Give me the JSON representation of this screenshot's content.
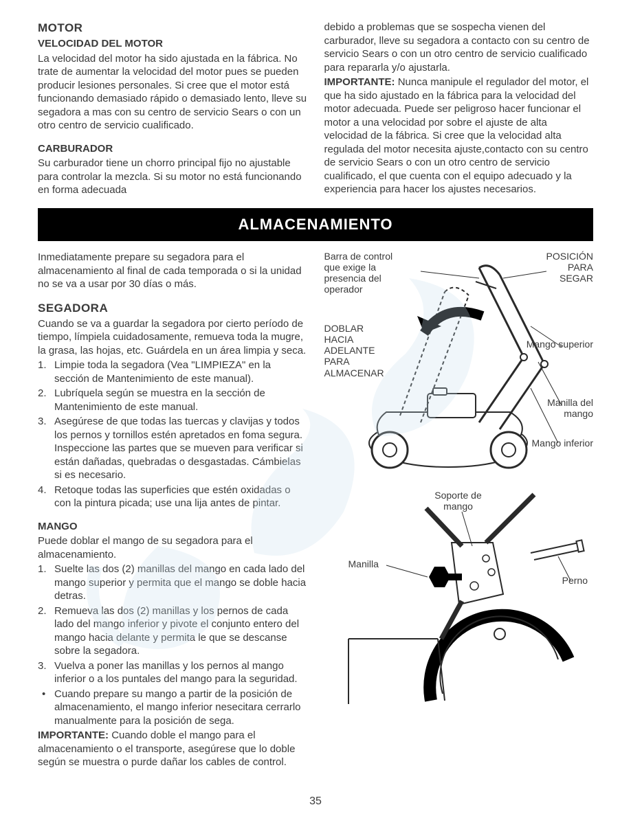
{
  "top": {
    "left": {
      "h_motor": "MOTOR",
      "h_velocidad": "VELOCIDAD DEL MOTOR",
      "p_velocidad": "La velocidad del motor ha sido ajustada en la fábrica. No trate de aumentar la velocidad del motor pues se pueden producir lesiones personales. Si cree que el motor está funcionando demasiado rápido o demasiado lento, lleve su segadora a mas con su centro de servicio Sears o con un otro centro de servicio cualificado.",
      "h_carb": "CARBURADOR",
      "p_carb": "Su carburador tiene un chorro principal fijo no ajustable para controlar la mezcla. Si su motor no está funcionando en forma adecuada"
    },
    "right": {
      "p_cont": "debido a problemas que se sospecha vienen del carburador, lleve su segadora a contacto con su centro de servicio Sears o con un otro centro de servicio cualificado para repararla y/o ajustarla.",
      "p_imp_label": "IMPORTANTE:",
      "p_imp": " Nunca manipule el regulador del motor, el que ha sido ajustado en la fábrica para la velocidad del motor adecuada. Puede ser peligroso hacer funcionar el motor a una velocidad por sobre el ajuste de alta velocidad de la fábrica. Si cree que la velocidad alta regulada del motor necesita ajuste,contacto con su centro de servicio Sears o con un otro centro de servicio cualificado, el que cuenta con el equipo adecuado y la experiencia para hacer los ajustes necesarios."
    }
  },
  "banner": "ALMACENAMIENTO",
  "bottom": {
    "left": {
      "p_intro": "Inmediatamente prepare su segadora para el almacenamiento al final de cada temporada o si la unidad no se va a usar por 30 días o más.",
      "h_seg": "SEGADORA",
      "p_seg": "Cuando se va a guardar la segadora por cierto período de tiempo, límpiela cuidadosamente, remueva toda la mugre, la grasa, las hojas, etc. Guárdela en un área limpia y seca.",
      "seg_items": [
        "Limpie toda la segadora (Vea \"LIMPIEZA\" en la sección de Mantenimiento de este manual).",
        "Lubríquela según se muestra en la sección de Mantenimiento de este manual.",
        "Asegúrese de que todas las tuercas y clavijas y todos los pernos y tornillos estén apretados en foma segura. Inspeccione las partes que se mueven para verificar si están dañadas, quebradas o desgastadas. Cámbielas si es necesario.",
        "Retoque todas las superficies que estén oxidadas o con la pintura picada; use una lija antes de pintar."
      ],
      "h_mango": "MANGO",
      "p_mango": "Puede doblar el mango de su segadora para el almacenamiento.",
      "mango_items": [
        "Suelte las dos (2) manillas del mango en cada lado del mango superior y permita que el mango se doble hacia detras.",
        "Remueva las dos (2) manillas y los pernos de cada lado del mango inferior y pivote el conjunto entero del mango hacia delante y permita le que se descanse sobre la segadora.",
        "Vuelva a poner las manillas y los pernos al mango inferior o a los puntales del mango para la seguridad."
      ],
      "mango_bullet": "Cuando prepare su mango a partir de la posición de almacenamiento, el mango inferior nesecitara  cerrarlo manualmente para la posición de sega.",
      "p_imp2_label": "IMPORTANTE:",
      "p_imp2": " Cuando doble el mango para el almacenamiento o el transporte, asegúrese que lo doble según se muestra o purde dañar los cables de control."
    },
    "fig1": {
      "label_barra": "Barra de control que exige la presencia del operador",
      "label_pos": "POSICIÓN PARA SEGAR",
      "label_doblar": "DOBLAR HACIA ADELANTE PARA ALMACENAR",
      "label_msup": "Mango superior",
      "label_manilla": "Manilla del mango",
      "label_minf": "Mango inferior"
    },
    "fig2": {
      "label_soporte": "Soporte de mango",
      "label_manilla": "Manilla",
      "label_perno": "Perno"
    }
  },
  "page_number": "35",
  "colors": {
    "text": "#3a3a3a",
    "banner_bg": "#000000",
    "banner_fg": "#ffffff",
    "watermark": "#b8d8e8"
  }
}
